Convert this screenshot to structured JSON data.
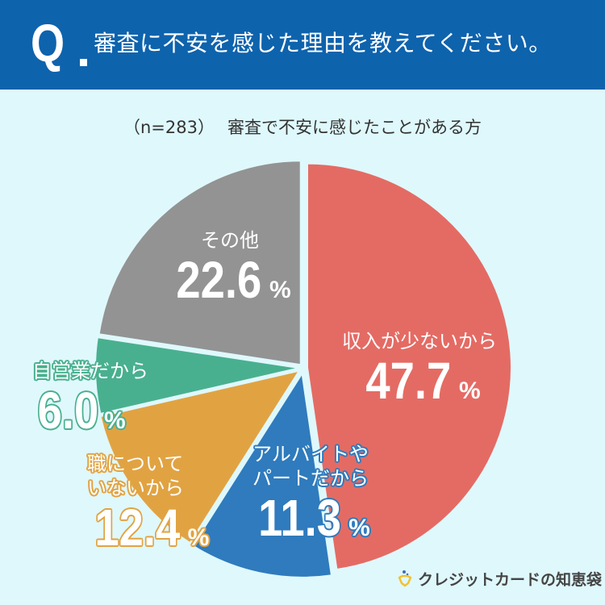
{
  "header": {
    "q_mark": "Q",
    "question": "審査に不安を感じた理由を教えてください。",
    "background": "#0e63ad"
  },
  "subtitle": {
    "sample": "（n=283）",
    "description": "審査で不安に感じたことがある方"
  },
  "chart_data": {
    "type": "pie",
    "title": "審査に不安を感じた理由を教えてください。",
    "subtitle": "（n=283）審査で不安に感じたことがある方",
    "unit": "%",
    "start_angle": "12 o'clock, clockwise",
    "exploded": true,
    "categories": [
      "収入が少ないから",
      "アルバイトやパートだから",
      "職についていないから",
      "自営業だから",
      "その他"
    ],
    "values": [
      47.7,
      11.3,
      12.4,
      6.0,
      22.6
    ],
    "colors": [
      "#e46b64",
      "#2f7bbd",
      "#e1a342",
      "#49b08f",
      "#939394"
    ],
    "slices": [
      {
        "label": "収入が少ないから",
        "value": 47.7,
        "color": "#e46b64"
      },
      {
        "label": "アルバイトやパートだから",
        "value": 11.3,
        "color": "#2f7bbd"
      },
      {
        "label": "職についていないから",
        "value": 12.4,
        "color": "#e1a342"
      },
      {
        "label": "自営業だから",
        "value": 6.0,
        "color": "#49b08f"
      },
      {
        "label": "その他",
        "value": 22.6,
        "color": "#939394"
      }
    ]
  },
  "labels": {
    "red": {
      "name": "収入が少ないから",
      "pct": "47.7",
      "sign": "%"
    },
    "blue": {
      "name1": "アルバイトや",
      "name2": "パートだから",
      "pct": "11.3",
      "sign": "%"
    },
    "orange": {
      "name1": "職について",
      "name2": "いないから",
      "pct": "12.4",
      "sign": "%"
    },
    "green": {
      "name": "自営業だから",
      "pct": "6.0",
      "sign": "%"
    },
    "grey": {
      "name": "その他",
      "pct": "22.6",
      "sign": "%"
    }
  },
  "footer": {
    "logo_text": "クレジットカードの知恵袋",
    "logo_icon": "ring-icon"
  },
  "colors": {
    "background": "#dff8fc",
    "header": "#0e63ad"
  }
}
